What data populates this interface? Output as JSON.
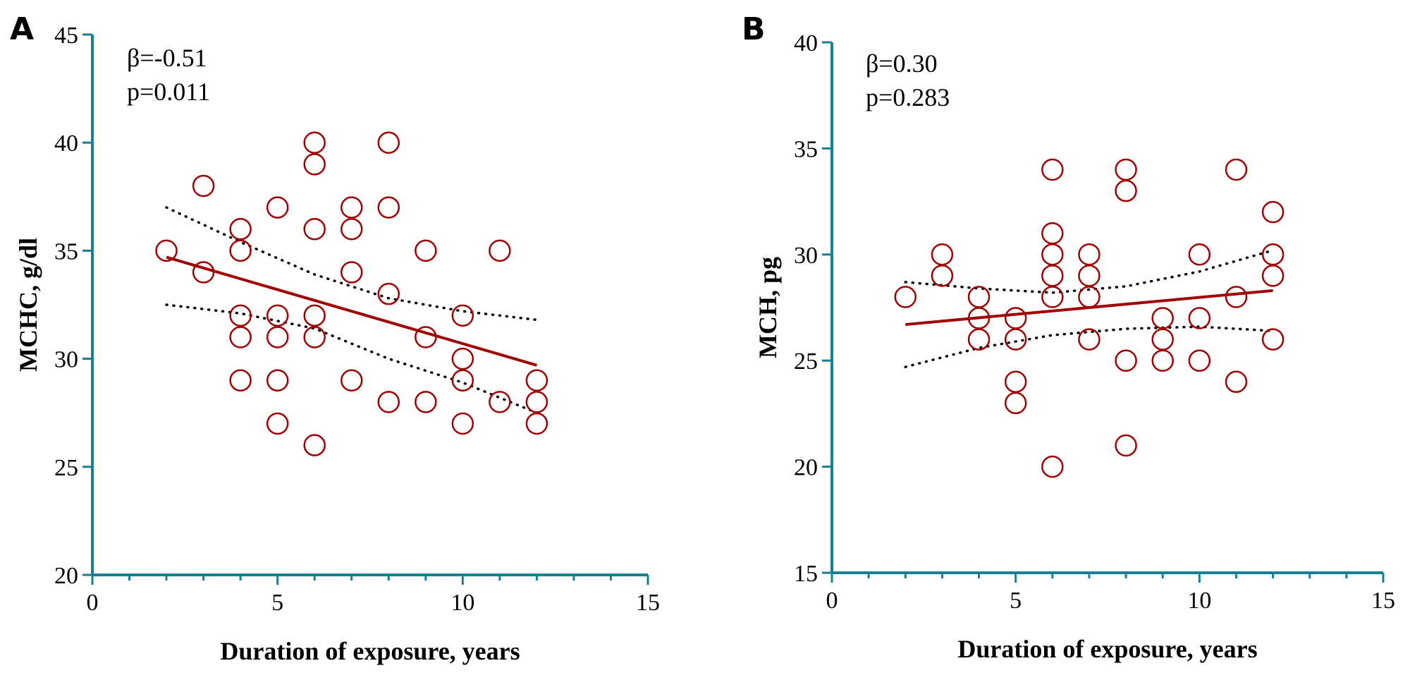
{
  "chart_data": [
    {
      "type": "scatter",
      "panel_label": "A",
      "xlabel": "Duration of exposure, years",
      "ylabel": "MCHC, g/dl",
      "xlim": [
        0,
        15
      ],
      "ylim": [
        20,
        45
      ],
      "xticks": [
        0,
        5,
        10,
        15
      ],
      "yticks": [
        20,
        25,
        30,
        35,
        40,
        45
      ],
      "xminor": [
        1,
        2,
        3,
        4,
        6,
        7,
        8,
        9,
        11,
        12,
        13,
        14
      ],
      "yminor": [],
      "stats": [
        "β=-0.51",
        "p=0.011"
      ],
      "colors": {
        "points": "#a00000",
        "axis": "#1b7f93",
        "ci": "#000000"
      },
      "points": [
        [
          2,
          35
        ],
        [
          3,
          38
        ],
        [
          3,
          34
        ],
        [
          4,
          36
        ],
        [
          4,
          35
        ],
        [
          4,
          32
        ],
        [
          4,
          31
        ],
        [
          4,
          29
        ],
        [
          5,
          37
        ],
        [
          5,
          32
        ],
        [
          5,
          31
        ],
        [
          5,
          29
        ],
        [
          5,
          27
        ],
        [
          6,
          40
        ],
        [
          6,
          39
        ],
        [
          6,
          36
        ],
        [
          6,
          32
        ],
        [
          6,
          31
        ],
        [
          6,
          26
        ],
        [
          7,
          37
        ],
        [
          7,
          36
        ],
        [
          7,
          34
        ],
        [
          7,
          29
        ],
        [
          8,
          40
        ],
        [
          8,
          37
        ],
        [
          8,
          33
        ],
        [
          8,
          28
        ],
        [
          9,
          35
        ],
        [
          9,
          31
        ],
        [
          9,
          28
        ],
        [
          10,
          32
        ],
        [
          10,
          30
        ],
        [
          10,
          29
        ],
        [
          10,
          27
        ],
        [
          11,
          35
        ],
        [
          11,
          28
        ],
        [
          12,
          29
        ],
        [
          12,
          28
        ],
        [
          12,
          27
        ]
      ],
      "regression": [
        [
          2,
          34.7
        ],
        [
          12,
          29.7
        ]
      ],
      "ci_upper": [
        [
          2,
          37
        ],
        [
          4,
          35.4
        ],
        [
          6,
          33.9
        ],
        [
          8,
          32.8
        ],
        [
          10,
          32.2
        ],
        [
          12,
          31.8
        ]
      ],
      "ci_lower": [
        [
          2,
          32.5
        ],
        [
          4,
          32.1
        ],
        [
          6,
          31.4
        ],
        [
          8,
          30.0
        ],
        [
          10,
          28.9
        ],
        [
          12,
          27.5
        ]
      ]
    },
    {
      "type": "scatter",
      "panel_label": "B",
      "xlabel": "Duration of exposure, years",
      "ylabel": "MCH, pg",
      "xlim": [
        0,
        15
      ],
      "ylim": [
        15,
        40
      ],
      "xticks": [
        0,
        5,
        10,
        15
      ],
      "yticks": [
        15,
        20,
        25,
        30,
        35,
        40
      ],
      "xminor": [
        1,
        2,
        3,
        4,
        6,
        7,
        8,
        9,
        11,
        12,
        13,
        14
      ],
      "yminor": [],
      "stats": [
        "β=0.30",
        "p=0.283"
      ],
      "colors": {
        "points": "#a00000",
        "axis": "#1b7f93",
        "ci": "#000000"
      },
      "points": [
        [
          2,
          28
        ],
        [
          3,
          30
        ],
        [
          3,
          29
        ],
        [
          4,
          28
        ],
        [
          4,
          27
        ],
        [
          4,
          26
        ],
        [
          5,
          27
        ],
        [
          5,
          26
        ],
        [
          5,
          24
        ],
        [
          5,
          23
        ],
        [
          6,
          34
        ],
        [
          6,
          31
        ],
        [
          6,
          30
        ],
        [
          6,
          29
        ],
        [
          6,
          28
        ],
        [
          6,
          20
        ],
        [
          7,
          30
        ],
        [
          7,
          29
        ],
        [
          7,
          28
        ],
        [
          7,
          26
        ],
        [
          8,
          34
        ],
        [
          8,
          33
        ],
        [
          8,
          25
        ],
        [
          8,
          21
        ],
        [
          9,
          27
        ],
        [
          9,
          26
        ],
        [
          9,
          25
        ],
        [
          10,
          30
        ],
        [
          10,
          27
        ],
        [
          10,
          25
        ],
        [
          11,
          34
        ],
        [
          11,
          28
        ],
        [
          11,
          24
        ],
        [
          12,
          32
        ],
        [
          12,
          30
        ],
        [
          12,
          29
        ],
        [
          12,
          26
        ]
      ],
      "regression": [
        [
          2,
          26.7
        ],
        [
          12,
          28.3
        ]
      ],
      "ci_upper": [
        [
          2,
          28.7
        ],
        [
          4,
          28.4
        ],
        [
          6,
          28.2
        ],
        [
          8,
          28.5
        ],
        [
          10,
          29.2
        ],
        [
          12,
          30.2
        ]
      ],
      "ci_lower": [
        [
          2,
          24.7
        ],
        [
          4,
          25.6
        ],
        [
          6,
          26.2
        ],
        [
          8,
          26.5
        ],
        [
          10,
          26.6
        ],
        [
          12,
          26.4
        ]
      ]
    }
  ]
}
